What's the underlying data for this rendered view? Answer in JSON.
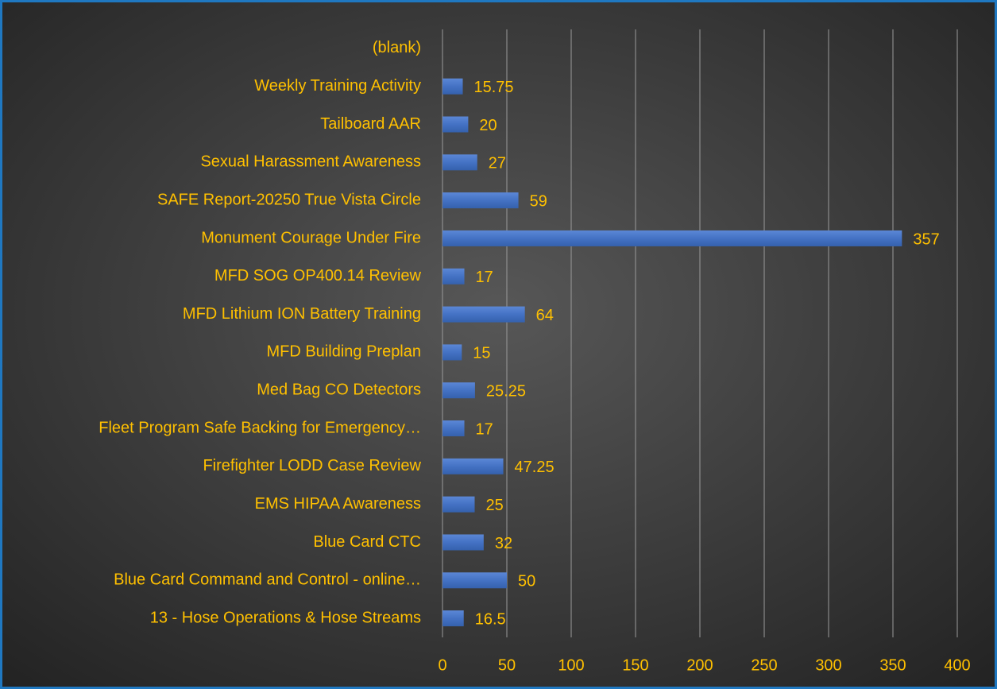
{
  "chart_data": {
    "type": "bar",
    "orientation": "horizontal",
    "categories": [
      "13 - Hose Operations & Hose Streams",
      "Blue Card Command and Control - online…",
      "Blue Card CTC",
      "EMS HIPAA Awareness",
      "Firefighter LODD Case Review",
      "Fleet Program Safe Backing for Emergency…",
      "Med Bag CO Detectors",
      "MFD Building Preplan",
      "MFD Lithium ION Battery Training",
      "MFD SOG OP400.14 Review",
      "Monument Courage Under Fire",
      "SAFE Report-20250 True Vista Circle",
      "Sexual Harassment Awareness",
      "Tailboard AAR",
      "Weekly Training Activity",
      "(blank)"
    ],
    "values": [
      16.5,
      50,
      32,
      25,
      47.25,
      17,
      25.25,
      15,
      64,
      17,
      357,
      59,
      27,
      20,
      15.75,
      null
    ],
    "color": "#4472c4",
    "xlim": [
      0,
      400
    ],
    "xticks": [
      0,
      50,
      100,
      150,
      200,
      250,
      300,
      350,
      400
    ],
    "grid": true
  }
}
